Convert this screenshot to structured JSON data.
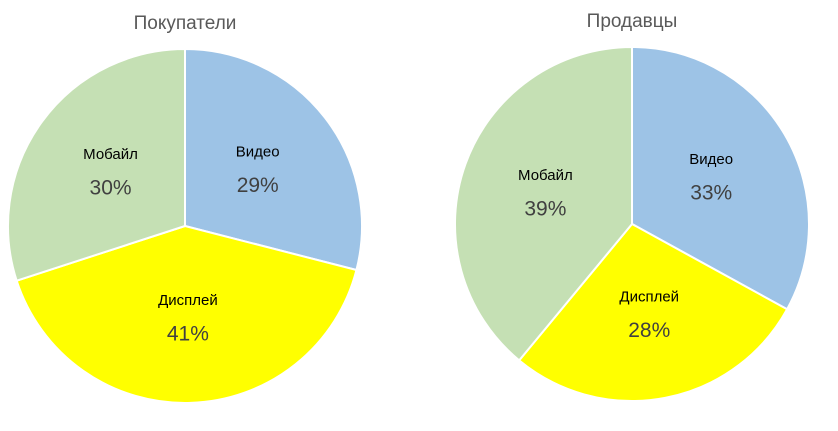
{
  "chart_data": [
    {
      "type": "pie",
      "title": "Покупатели",
      "categories": [
        "Видео",
        "Дисплей",
        "Мобайл"
      ],
      "values": [
        29,
        41,
        30
      ],
      "value_labels": [
        "29%",
        "41%",
        "30%"
      ],
      "colors": [
        "#9dc3e6",
        "#ffff00",
        "#c5e0b4"
      ]
    },
    {
      "type": "pie",
      "title": "Продавцы",
      "categories": [
        "Видео",
        "Дисплей",
        "Мобайл"
      ],
      "values": [
        33,
        28,
        39
      ],
      "value_labels": [
        "33%",
        "28%",
        "39%"
      ],
      "colors": [
        "#9dc3e6",
        "#ffff00",
        "#c5e0b4"
      ]
    }
  ]
}
